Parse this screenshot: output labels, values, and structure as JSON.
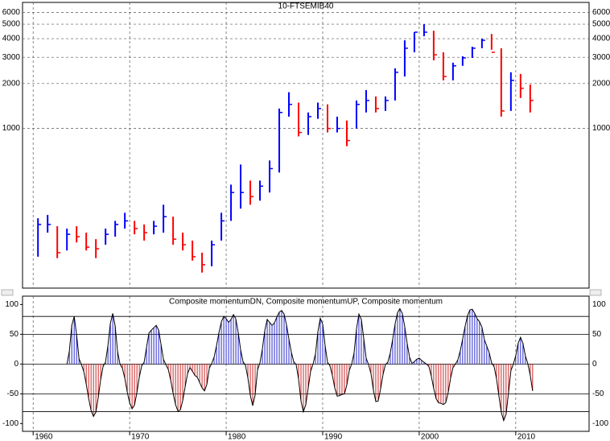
{
  "chart_data": [
    {
      "type": "hlc",
      "title": "10-FTSEMIB40",
      "log_scale": true,
      "grid": true,
      "up_color": "#0000ff",
      "down_color": "#ff0000",
      "ylim": [
        85,
        7000
      ],
      "yticks": [
        1000,
        2000,
        3000,
        4000,
        5000,
        6000
      ],
      "x": [
        1960.5,
        1961.5,
        1962.5,
        1963.5,
        1964.5,
        1965.5,
        1966.5,
        1967.5,
        1968.5,
        1969.5,
        1970.5,
        1971.5,
        1972.5,
        1973.5,
        1974.5,
        1975.5,
        1976.5,
        1977.5,
        1978.5,
        1979.5,
        1980.5,
        1981.5,
        1982.5,
        1983.5,
        1984.5,
        1985.5,
        1986.5,
        1987.5,
        1988.5,
        1989.5,
        1990.5,
        1991.5,
        1992.5,
        1993.5,
        1994.5,
        1995.5,
        1996.5,
        1997.5,
        1998.5,
        1999.5,
        2000.5,
        2001.5,
        2002.5,
        2003.5,
        2004.5,
        2005.5,
        2006.5,
        2007.5,
        2008.5,
        2009.5,
        2010.5,
        2011.5
      ],
      "high": [
        250,
        263,
        221,
        213,
        221,
        200,
        181,
        213,
        240,
        272,
        240,
        227,
        240,
        308,
        256,
        200,
        177,
        147,
        177,
        272,
        420,
        573,
        447,
        447,
        610,
        1360,
        1750,
        1490,
        1280,
        1490,
        1450,
        1200,
        1130,
        1540,
        1810,
        1640,
        1640,
        2530,
        3900,
        4420,
        5000,
        4520,
        3240,
        2760,
        3050,
        3530,
        4000,
        4300,
        3450,
        2380,
        2320,
        1970
      ],
      "low": [
        138,
        200,
        135,
        152,
        172,
        152,
        135,
        166,
        188,
        213,
        195,
        177,
        195,
        200,
        166,
        152,
        130,
        108,
        119,
        177,
        240,
        290,
        308,
        328,
        372,
        506,
        1200,
        885,
        905,
        1160,
        940,
        940,
        760,
        1000,
        1280,
        1280,
        1310,
        1540,
        2230,
        3240,
        4150,
        2860,
        2100,
        2100,
        2630,
        2970,
        3450,
        3370,
        1200,
        1310,
        1600,
        1280
      ],
      "close": [
        227,
        227,
        147,
        195,
        188,
        160,
        156,
        195,
        227,
        240,
        213,
        200,
        221,
        256,
        181,
        166,
        138,
        122,
        166,
        240,
        372,
        372,
        349,
        410,
        538,
        1280,
        1450,
        940,
        1200,
        1360,
        1000,
        1000,
        830,
        1450,
        1540,
        1360,
        1540,
        2380,
        3450,
        4420,
        4420,
        3120,
        2230,
        2630,
        2970,
        3450,
        3900,
        3240,
        1310,
        2100,
        1860,
        1540
      ]
    },
    {
      "type": "line",
      "title": "Composite momentumDN, Composite momentumUP, Composite momentum",
      "grid": true,
      "up_color": "#1010c8",
      "down_color": "#c81010",
      "line_color": "#000000",
      "ylim": [
        -113,
        114
      ],
      "yticks": [
        100,
        50,
        0,
        -50,
        -100
      ],
      "levels": [
        80,
        50,
        0,
        -50,
        -80
      ],
      "xlim": [
        1958.9,
        2017.6
      ],
      "xticks": [
        1960,
        1970,
        1980,
        1990,
        2000,
        2010
      ],
      "x": [
        1963.5,
        1963.75,
        1964,
        1964.25,
        1964.5,
        1964.75,
        1965,
        1965.25,
        1965.5,
        1965.75,
        1966,
        1966.25,
        1966.5,
        1966.75,
        1967,
        1967.25,
        1967.5,
        1967.75,
        1968,
        1968.25,
        1968.5,
        1968.75,
        1969,
        1969.25,
        1969.5,
        1969.75,
        1970,
        1970.25,
        1970.5,
        1970.75,
        1971,
        1971.25,
        1971.5,
        1971.75,
        1972,
        1972.25,
        1972.5,
        1972.75,
        1973,
        1973.25,
        1973.5,
        1973.75,
        1974,
        1974.25,
        1974.5,
        1974.75,
        1975,
        1975.25,
        1975.5,
        1975.75,
        1976,
        1976.25,
        1976.5,
        1976.75,
        1977,
        1977.25,
        1977.5,
        1977.75,
        1978,
        1978.25,
        1978.5,
        1978.75,
        1979,
        1979.25,
        1979.5,
        1979.75,
        1980,
        1980.25,
        1980.5,
        1980.75,
        1981,
        1981.25,
        1981.5,
        1981.75,
        1982,
        1982.25,
        1982.5,
        1982.75,
        1983,
        1983.25,
        1983.5,
        1983.75,
        1984,
        1984.25,
        1984.5,
        1984.75,
        1985,
        1985.25,
        1985.5,
        1985.75,
        1986,
        1986.25,
        1986.5,
        1986.75,
        1987,
        1987.25,
        1987.5,
        1987.75,
        1988,
        1988.25,
        1988.5,
        1988.75,
        1989,
        1989.25,
        1989.5,
        1989.75,
        1990,
        1990.25,
        1990.5,
        1990.75,
        1991,
        1991.25,
        1991.5,
        1991.75,
        1992,
        1992.25,
        1992.5,
        1992.75,
        1993,
        1993.25,
        1993.5,
        1993.75,
        1994,
        1994.25,
        1994.5,
        1994.75,
        1995,
        1995.25,
        1995.5,
        1995.75,
        1996,
        1996.25,
        1996.5,
        1996.75,
        1997,
        1997.25,
        1997.5,
        1997.75,
        1998,
        1998.25,
        1998.5,
        1998.75,
        1999,
        1999.25,
        1999.5,
        1999.75,
        2000,
        2000.25,
        2000.5,
        2000.75,
        2001,
        2001.25,
        2001.5,
        2001.75,
        2002,
        2002.25,
        2002.5,
        2002.75,
        2003,
        2003.25,
        2003.5,
        2003.75,
        2004,
        2004.25,
        2004.5,
        2004.75,
        2005,
        2005.25,
        2005.5,
        2005.75,
        2006,
        2006.25,
        2006.5,
        2006.75,
        2007,
        2007.25,
        2007.5,
        2007.75,
        2008,
        2008.25,
        2008.5,
        2008.75,
        2009,
        2009.25,
        2009.5,
        2009.75,
        2010,
        2010.25,
        2010.5,
        2010.75,
        2011,
        2011.25,
        2011.5,
        2011.75
      ],
      "values": [
        0,
        22,
        65,
        80,
        49,
        9,
        -1,
        -13,
        -34,
        -58,
        -78,
        -88,
        -81,
        -56,
        -26,
        -4,
        3,
        31,
        68,
        85,
        64,
        21,
        0,
        -7,
        -24,
        -47,
        -65,
        -75,
        -69,
        -48,
        -22,
        -3,
        3,
        28,
        52,
        57,
        61,
        65,
        57,
        33,
        8,
        -1,
        -9,
        -27,
        -49,
        -68,
        -79,
        -77,
        -61,
        -38,
        -16,
        -6,
        -12,
        -19,
        -22,
        -31,
        -40,
        -45,
        -34,
        -7,
        1,
        12,
        31,
        53,
        71,
        80,
        76,
        70,
        75,
        83,
        76,
        53,
        24,
        4,
        -2,
        -23,
        -52,
        -70,
        -52,
        -10,
        2,
        25,
        56,
        75,
        70,
        65,
        69,
        79,
        87,
        90,
        84,
        66,
        42,
        20,
        4,
        -1,
        -25,
        -62,
        -80,
        -68,
        -40,
        -12,
        0,
        17,
        54,
        77,
        67,
        31,
        3,
        -3,
        -19,
        -40,
        -54,
        -53,
        -51,
        -50,
        -35,
        -11,
        0,
        19,
        59,
        84,
        75,
        43,
        10,
        -1,
        -16,
        -44,
        -63,
        -62,
        -42,
        -18,
        -1,
        3,
        18,
        41,
        67,
        86,
        93,
        85,
        63,
        35,
        12,
        1,
        4,
        8,
        10,
        6,
        3,
        0,
        -4,
        -20,
        -41,
        -58,
        -65,
        -66,
        -68,
        -65,
        -48,
        -24,
        -6,
        0,
        7,
        22,
        42,
        63,
        81,
        91,
        92,
        85,
        76,
        71,
        62,
        41,
        30,
        19,
        2,
        -4,
        -24,
        -53,
        -81,
        -95,
        -84,
        -48,
        -11,
        0,
        14,
        35,
        45,
        35,
        14,
        1,
        -18,
        -45
      ]
    }
  ]
}
